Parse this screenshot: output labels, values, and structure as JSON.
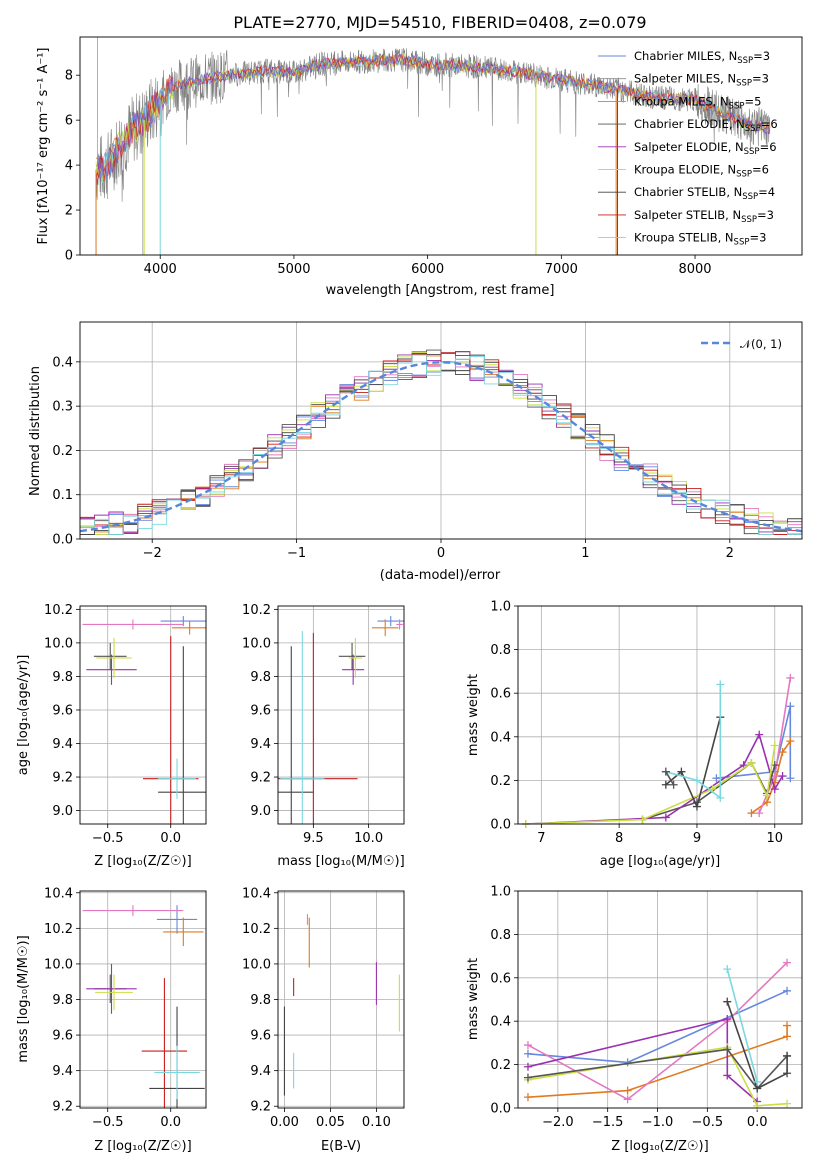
{
  "title": "PLATE=2770, MJD=54510, FIBERID=0408, z=0.079",
  "colors": {
    "chabrier_miles": "#6688dd",
    "salpeter_miles": "#888888",
    "kroupa_miles": "#e07a20",
    "chabrier_elodie": "#555555",
    "salpeter_elodie": "#9b30b0",
    "kroupa_elodie": "#ccdd44",
    "chabrier_stelib": "#444444",
    "salpeter_stelib": "#c81e1e",
    "kroupa_stelib": "#7ad8e0",
    "gauss": "#5588dd",
    "pink": "#e377c2"
  },
  "chart_data": [
    {
      "type": "line",
      "title": "PLATE=2770, MJD=54510, FIBERID=0408, z=0.079",
      "xlabel": "wavelength [Angstrom, rest frame]",
      "ylabel": "Flux [f_λ 10^-17 erg cm^-2 s^-1 A^-1]",
      "xlim": [
        3400,
        8800
      ],
      "ylim": [
        0,
        9.7
      ],
      "xticks": [
        "4000",
        "5000",
        "6000",
        "7000",
        "8000"
      ],
      "yticks": [
        "0",
        "2",
        "4",
        "6",
        "8"
      ],
      "legend_position": "top-right",
      "legend": [
        "Chabrier MILES, N_SSP=3",
        "Salpeter MILES, N_SSP=3",
        "Kroupa MILES, N_SSP=5",
        "Chabrier ELODIE, N_SSP=6",
        "Salpeter ELODIE, N_SSP=6",
        "Kroupa ELODIE, N_SSP=6",
        "Chabrier STELIB, N_SSP=4",
        "Salpeter STELIB, N_SSP=3",
        "Kroupa STELIB, N_SSP=3"
      ],
      "continuum": [
        [
          3520,
          3.8
        ],
        [
          3600,
          3.9
        ],
        [
          3700,
          4.9
        ],
        [
          3800,
          5.6
        ],
        [
          3900,
          6.1
        ],
        [
          4000,
          6.9
        ],
        [
          4100,
          7.5
        ],
        [
          4300,
          7.8
        ],
        [
          4500,
          8.0
        ],
        [
          4800,
          8.2
        ],
        [
          5000,
          8.1
        ],
        [
          5200,
          8.5
        ],
        [
          5500,
          8.6
        ],
        [
          5800,
          8.7
        ],
        [
          6000,
          8.5
        ],
        [
          6300,
          8.4
        ],
        [
          6600,
          8.2
        ],
        [
          6800,
          8.0
        ],
        [
          7000,
          7.8
        ],
        [
          7200,
          7.6
        ],
        [
          7400,
          7.4
        ],
        [
          7700,
          7.0
        ],
        [
          8000,
          6.9
        ],
        [
          8200,
          6.3
        ],
        [
          8400,
          5.8
        ],
        [
          8550,
          5.6
        ]
      ]
    },
    {
      "type": "line",
      "xlabel": "(data-model)/error",
      "ylabel": "Normed distribution",
      "xlim": [
        -2.5,
        2.5
      ],
      "ylim": [
        0,
        0.49
      ],
      "xticks": [
        "−2",
        "−1",
        "0",
        "1",
        "2"
      ],
      "yticks": [
        "0.0",
        "0.1",
        "0.2",
        "0.3",
        "0.4"
      ],
      "legend": [
        "N(0, 1)"
      ],
      "legend_position": "top-right",
      "grid": true
    },
    {
      "type": "scatter",
      "xlabel": "Z [log10(Z/Z_⊙)]",
      "ylabel": "age [log10(age/yr)]",
      "xlim": [
        -0.72,
        0.28
      ],
      "ylim": [
        8.92,
        10.22
      ],
      "xticks": [
        "−0.5",
        "0.0"
      ],
      "yticks": [
        "9.0",
        "9.2",
        "9.4",
        "9.6",
        "9.8",
        "10.0",
        "10.2"
      ],
      "points": [
        {
          "x": 0.1,
          "y": 10.13,
          "dx": 0.18,
          "dy": 0.03,
          "c": "chabrier_miles"
        },
        {
          "x": 0.15,
          "y": 10.09,
          "dx": 0.14,
          "dy": 0.04,
          "c": "kroupa_miles"
        },
        {
          "x": -0.3,
          "y": 10.11,
          "dx": 0.4,
          "dy": 0.03,
          "c": "pink"
        },
        {
          "x": -0.48,
          "y": 9.92,
          "dx": 0.13,
          "dy": 0.08,
          "c": "chabrier_elodie"
        },
        {
          "x": -0.47,
          "y": 9.84,
          "dx": 0.2,
          "dy": 0.09,
          "c": "salpeter_elodie"
        },
        {
          "x": -0.45,
          "y": 9.91,
          "dx": 0.14,
          "dy": 0.12,
          "c": "kroupa_elodie"
        },
        {
          "x": 0.1,
          "y": 9.11,
          "dx": 0.2,
          "dy": 0.87,
          "c": "chabrier_stelib"
        },
        {
          "x": 0.0,
          "y": 9.19,
          "dx": 0.22,
          "dy": 0.85,
          "c": "salpeter_stelib"
        },
        {
          "x": 0.05,
          "y": 9.19,
          "dx": 0.15,
          "dy": 0.12,
          "c": "kroupa_stelib"
        }
      ]
    },
    {
      "type": "scatter",
      "xlabel": "mass [log10(M/M_⊙)]",
      "xlim": [
        9.18,
        10.32
      ],
      "ylim": [
        8.92,
        10.22
      ],
      "xticks": [
        "9.5",
        "10.0"
      ],
      "yticks": [
        "9.0",
        "9.2",
        "9.4",
        "9.6",
        "9.8",
        "10.0",
        "10.2"
      ],
      "points": [
        {
          "x": 10.2,
          "y": 10.13,
          "dx": 0.12,
          "dy": 0.03,
          "c": "chabrier_miles"
        },
        {
          "x": 10.15,
          "y": 10.09,
          "dx": 0.12,
          "dy": 0.05,
          "c": "kroupa_miles"
        },
        {
          "x": 10.28,
          "y": 10.11,
          "dx": 0.03,
          "dy": 0.03,
          "c": "pink"
        },
        {
          "x": 9.85,
          "y": 9.92,
          "dx": 0.12,
          "dy": 0.08,
          "c": "chabrier_elodie"
        },
        {
          "x": 9.86,
          "y": 9.84,
          "dx": 0.1,
          "dy": 0.09,
          "c": "salpeter_elodie"
        },
        {
          "x": 9.88,
          "y": 9.91,
          "dx": 0.06,
          "dy": 0.12,
          "c": "kroupa_elodie"
        },
        {
          "x": 9.3,
          "y": 9.11,
          "dx": 0.2,
          "dy": 0.87,
          "c": "chabrier_stelib"
        },
        {
          "x": 9.5,
          "y": 9.19,
          "dx": 0.4,
          "dy": 0.87,
          "c": "salpeter_stelib"
        },
        {
          "x": 9.4,
          "y": 9.19,
          "dx": 0.2,
          "dy": 0.88,
          "c": "kroupa_stelib"
        }
      ]
    },
    {
      "type": "line",
      "xlabel": "age [log10(age/yr)]",
      "ylabel": "mass weight",
      "xlim": [
        6.7,
        10.35
      ],
      "ylim": [
        0,
        1.0
      ],
      "xticks": [
        "7",
        "8",
        "9",
        "10"
      ],
      "yticks": [
        "0.0",
        "0.2",
        "0.4",
        "0.6",
        "0.8",
        "1.0"
      ],
      "grid": true,
      "series": [
        {
          "c": "chabrier_miles",
          "x": [
            9.25,
            10.0,
            10.2,
            10.2
          ],
          "y": [
            0.21,
            0.24,
            0.54,
            0.21
          ]
        },
        {
          "c": "kroupa_miles",
          "x": [
            9.7,
            9.9,
            10.0,
            10.1,
            10.2
          ],
          "y": [
            0.05,
            0.1,
            0.19,
            0.33,
            0.38
          ]
        },
        {
          "c": "pink",
          "x": [
            9.8,
            10.0,
            10.2
          ],
          "y": [
            0.05,
            0.22,
            0.67
          ]
        },
        {
          "c": "chabrier_elodie",
          "x": [
            8.3,
            9.0,
            9.7,
            9.9,
            10.0
          ],
          "y": [
            0.02,
            0.1,
            0.28,
            0.14,
            0.27
          ]
        },
        {
          "c": "salpeter_elodie",
          "x": [
            6.8,
            8.6,
            9.6,
            9.8,
            10.0,
            10.1
          ],
          "y": [
            0.0,
            0.03,
            0.27,
            0.41,
            0.16,
            0.22
          ]
        },
        {
          "c": "kroupa_elodie",
          "x": [
            6.8,
            8.3,
            9.2,
            9.7,
            9.9,
            10.0
          ],
          "y": [
            0.0,
            0.02,
            0.16,
            0.28,
            0.13,
            0.36
          ]
        },
        {
          "c": "chabrier_stelib",
          "x": [
            8.6,
            8.8,
            9.0,
            9.3
          ],
          "y": [
            0.18,
            0.24,
            0.08,
            0.49
          ]
        },
        {
          "c": "kroupa_stelib",
          "x": [
            8.6,
            9.0,
            9.3,
            9.3
          ],
          "y": [
            0.24,
            0.2,
            0.12,
            0.64
          ]
        },
        {
          "c": "chabrier_elodie",
          "x": [
            8.6,
            8.7
          ],
          "y": [
            0.24,
            0.18
          ]
        }
      ]
    },
    {
      "type": "scatter",
      "xlabel": "Z [log10(Z/Z_⊙)]",
      "ylabel": "mass [log10(M/M_⊙)]",
      "xlim": [
        -0.72,
        0.28
      ],
      "ylim": [
        9.19,
        10.41
      ],
      "xticks": [
        "−0.5",
        "0.0"
      ],
      "yticks": [
        "9.2",
        "9.4",
        "9.6",
        "9.8",
        "10.0",
        "10.2",
        "10.4"
      ],
      "points": [
        {
          "x": 0.05,
          "y": 10.25,
          "dx": 0.16,
          "dy": 0.08,
          "c": "chabrier_miles"
        },
        {
          "x": 0.1,
          "y": 10.18,
          "dx": 0.16,
          "dy": 0.08,
          "c": "kroupa_miles"
        },
        {
          "x": -0.3,
          "y": 10.3,
          "dx": 0.4,
          "dy": 0.03,
          "c": "pink"
        },
        {
          "x": -0.48,
          "y": 9.86,
          "dx": 0.13,
          "dy": 0.08,
          "c": "chabrier_elodie"
        },
        {
          "x": -0.47,
          "y": 9.86,
          "dx": 0.2,
          "dy": 0.14,
          "c": "salpeter_elodie"
        },
        {
          "x": -0.45,
          "y": 9.84,
          "dx": 0.15,
          "dy": 0.1,
          "c": "kroupa_elodie"
        },
        {
          "x": 0.05,
          "y": 9.3,
          "dx": 0.22,
          "dy": 0.46,
          "c": "chabrier_stelib"
        },
        {
          "x": -0.05,
          "y": 9.51,
          "dx": 0.18,
          "dy": 0.41,
          "c": "salpeter_stelib"
        },
        {
          "x": 0.05,
          "y": 9.39,
          "dx": 0.18,
          "dy": 0.15,
          "c": "kroupa_stelib"
        }
      ]
    },
    {
      "type": "scatter",
      "xlabel": "E(B-V)",
      "xlim": [
        -0.007,
        0.13
      ],
      "ylim": [
        9.19,
        10.41
      ],
      "xticks": [
        "0.00",
        "0.05",
        "0.10"
      ],
      "yticks": [
        "9.2",
        "9.4",
        "9.6",
        "9.8",
        "10.0",
        "10.2",
        "10.4"
      ],
      "points": [
        {
          "x": 0.025,
          "y": 10.25,
          "dy": 0.03,
          "c": "pink"
        },
        {
          "x": 0.027,
          "y": 10.12,
          "dy": 0.14,
          "c": "kroupa_miles"
        },
        {
          "x": 0.01,
          "y": 9.87,
          "dy": 0.05,
          "c": "salpeter_stelib"
        },
        {
          "x": 0.1,
          "y": 9.89,
          "dy": 0.12,
          "c": "salpeter_elodie"
        },
        {
          "x": 0.125,
          "y": 9.78,
          "dy": 0.16,
          "c": "kroupa_elodie"
        },
        {
          "x": 0.0,
          "y": 9.51,
          "dy": 0.25,
          "c": "chabrier_stelib"
        },
        {
          "x": 0.01,
          "y": 9.4,
          "dy": 0.1,
          "c": "kroupa_stelib"
        }
      ]
    },
    {
      "type": "line",
      "xlabel": "Z [log10(Z/Z_⊙)]",
      "ylabel": "mass weight",
      "xlim": [
        -2.4,
        0.45
      ],
      "ylim": [
        0,
        1.0
      ],
      "xticks": [
        "−2.0",
        "−1.5",
        "−1.0",
        "−0.5",
        "0.0"
      ],
      "yticks": [
        "0.0",
        "0.2",
        "0.4",
        "0.6",
        "0.8",
        "1.0"
      ],
      "grid": true,
      "series": [
        {
          "c": "chabrier_miles",
          "x": [
            -2.3,
            -1.3,
            0.3
          ],
          "y": [
            0.25,
            0.21,
            0.54
          ]
        },
        {
          "c": "kroupa_miles",
          "x": [
            -2.3,
            -1.3,
            0.3,
            0.3
          ],
          "y": [
            0.05,
            0.08,
            0.33,
            0.38
          ]
        },
        {
          "c": "pink",
          "x": [
            -2.3,
            -1.3,
            -0.3,
            0.3
          ],
          "y": [
            0.29,
            0.04,
            0.4,
            0.67
          ]
        },
        {
          "c": "salpeter_elodie",
          "x": [
            -2.3,
            -0.3,
            -0.3,
            0.0
          ],
          "y": [
            0.19,
            0.41,
            0.15,
            0.03
          ]
        },
        {
          "c": "kroupa_elodie",
          "x": [
            -2.3,
            -0.3,
            0.0,
            0.3
          ],
          "y": [
            0.13,
            0.28,
            0.01,
            0.02
          ]
        },
        {
          "c": "chabrier_elodie",
          "x": [
            -2.3,
            -0.3,
            0.0,
            0.3
          ],
          "y": [
            0.14,
            0.27,
            0.09,
            0.24
          ]
        },
        {
          "c": "chabrier_stelib",
          "x": [
            -0.3,
            0.0,
            0.3,
            0.3
          ],
          "y": [
            0.49,
            0.09,
            0.16,
            0.24
          ]
        },
        {
          "c": "kroupa_stelib",
          "x": [
            -0.3,
            0.0
          ],
          "y": [
            0.64,
            0.12
          ]
        }
      ]
    }
  ],
  "labels": {
    "p1_x": "wavelength [Angstrom, rest frame]",
    "p1_y": "Flux [fλ10⁻¹⁷ erg cm⁻² s⁻¹ A⁻¹]",
    "p2_x": "(data-model)/error",
    "p2_y": "Normed distribution",
    "p2_leg": "𝒩(0, 1)",
    "p3_x": "Z [log₁₀(Z/Z☉)]",
    "p3_y": "age  [log₁₀(age/yr)]",
    "p4_x": "mass [log₁₀(M/M☉)]",
    "p5_x": "age  [log₁₀(age/yr)]",
    "p5_y": "mass weight",
    "p6_x": "Z [log₁₀(Z/Z☉)]",
    "p6_y": "mass [log₁₀(M/M☉)]",
    "p7_x": "E(B-V)",
    "p8_x": "Z [log₁₀(Z/Z☉)]",
    "p8_y": "mass weight"
  }
}
